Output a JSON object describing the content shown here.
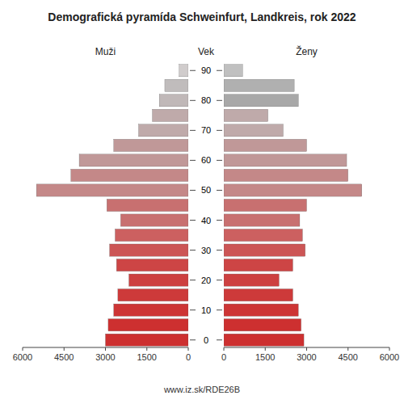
{
  "chart_data": {
    "type": "pyramid",
    "title": "Demografická pyramída Schweinfurt, Landkreis, rok 2022",
    "y_label": "Vek",
    "orientation": "horizontal",
    "categories": [
      "0",
      null,
      "10",
      null,
      "20",
      null,
      "30",
      null,
      "40",
      null,
      "50",
      null,
      "60",
      null,
      "70",
      null,
      "80",
      null,
      "90"
    ],
    "series": [
      {
        "name": "Muži",
        "values": [
          3000,
          2900,
          2700,
          2550,
          2150,
          2600,
          2850,
          2650,
          2450,
          2950,
          5500,
          4250,
          3950,
          2700,
          1800,
          1300,
          1050,
          850,
          330
        ],
        "colors": [
          "#cd3030",
          "#cd3030",
          "#cd3535",
          "#cd3a3a",
          "#cd4040",
          "#cd4545",
          "#cc5555",
          "#cc6060",
          "#c87070",
          "#c87070",
          "#c48888",
          "#c48888",
          "#c09898",
          "#c09898",
          "#bfaaaa",
          "#bfaaaa",
          "#c0b8b8",
          "#c0bcbc",
          "#d0cccc"
        ]
      },
      {
        "name": "Ženy",
        "values": [
          2900,
          2800,
          2700,
          2500,
          2000,
          2500,
          2950,
          2850,
          2750,
          3000,
          5000,
          4500,
          4450,
          3000,
          2150,
          1600,
          2700,
          2550,
          680
        ],
        "colors": [
          "#cd3030",
          "#cd3030",
          "#cd3535",
          "#cd3a3a",
          "#cd4040",
          "#cd4545",
          "#cc5555",
          "#cc6060",
          "#c87070",
          "#c87070",
          "#c48888",
          "#c48888",
          "#c09898",
          "#c09898",
          "#bfaaaa",
          "#bfaaaa",
          "#a8a8a8",
          "#b0b0b0",
          "#c0c0c0"
        ]
      }
    ],
    "xlim": [
      0,
      6000
    ],
    "xticks": [
      0,
      1500,
      3000,
      4500,
      6000
    ],
    "grid": false,
    "annotations": [
      "www.iz.sk/RDE26B"
    ]
  }
}
